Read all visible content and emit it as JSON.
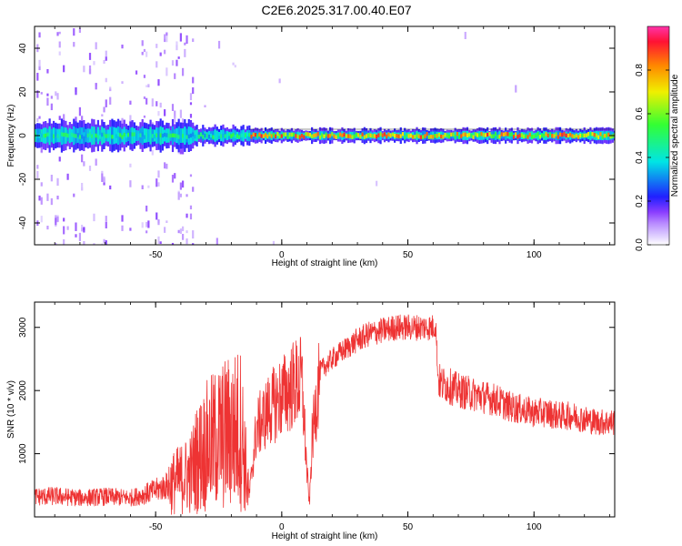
{
  "figure": {
    "title": "C2E6.2025.317.00.40.E07"
  },
  "colors": {
    "snr_line": "#ee3333",
    "rainbow_stops": [
      "#ffffff",
      "#d8c4ff",
      "#b788ff",
      "#8a3dff",
      "#2020ff",
      "#00e5e5",
      "#33ff33",
      "#f0f000",
      "#ff8800",
      "#ff1133",
      "#ff33aa"
    ]
  },
  "chart_data": [
    {
      "type": "heatmap",
      "xlabel": "Height of straight line (km)",
      "ylabel": "Frequency (Hz)",
      "xlim": [
        -98,
        132
      ],
      "ylim": [
        -50,
        50
      ],
      "xticks": [
        -50,
        0,
        50,
        100
      ],
      "xtick_labels": [
        "-50",
        "0",
        "50",
        "100"
      ],
      "yticks": [
        -40,
        -20,
        0,
        20,
        40
      ],
      "ytick_labels": [
        "-40",
        "-20",
        "0",
        "20",
        "40"
      ],
      "grid": false,
      "colorbar": {
        "label": "Normalized spectral amplitude",
        "range": [
          0,
          1
        ],
        "ticks": [
          0.0,
          0.2,
          0.4,
          0.6,
          0.8
        ],
        "tick_labels": [
          "0.0",
          "0.2",
          "0.4",
          "0.6",
          "0.8"
        ]
      },
      "description_of_bands": [
        {
          "x_from": -98,
          "x_to": -35,
          "freq_half_width_hz": 6,
          "peak_amplitude": 0.55,
          "background_scatter": "dense weak purple noise across all frequencies"
        },
        {
          "x_from": -35,
          "x_to": -13,
          "freq_half_width_hz": 4,
          "peak_amplitude": 0.55,
          "background_scatter": "sparse weak noise"
        },
        {
          "x_from": -13,
          "x_to": 132,
          "freq_half_width_hz": 3,
          "peak_amplitude": 0.92,
          "background_scatter": "very sparse"
        }
      ]
    },
    {
      "type": "line",
      "xlabel": "Height of straight line (km)",
      "ylabel": "SNR (10 * v/v)",
      "xlim": [
        -98,
        132
      ],
      "ylim": [
        0,
        3400
      ],
      "xticks": [
        -50,
        0,
        50,
        100
      ],
      "xtick_labels": [
        "-50",
        "0",
        "50",
        "100"
      ],
      "yticks": [
        1000,
        2000,
        3000
      ],
      "ytick_labels": [
        "1000",
        "2000",
        "3000"
      ],
      "grid": false,
      "series": [
        {
          "name": "",
          "x": [
            -98,
            -90,
            -80,
            -70,
            -60,
            -55,
            -50,
            -45,
            -40,
            -36,
            -34,
            -30,
            -25,
            -20,
            -16,
            -13,
            -10,
            -5,
            0,
            5,
            8,
            10,
            11,
            12,
            15,
            20,
            25,
            30,
            35,
            40,
            45,
            50,
            55,
            60,
            61,
            62,
            63,
            65,
            70,
            75,
            80,
            85,
            90,
            95,
            100,
            105,
            110,
            115,
            120,
            125,
            132
          ],
          "y": [
            320,
            330,
            300,
            320,
            300,
            350,
            420,
            500,
            600,
            700,
            900,
            1100,
            1250,
            1350,
            1400,
            300,
            1400,
            1700,
            1900,
            2100,
            2150,
            700,
            200,
            1200,
            2300,
            2500,
            2650,
            2800,
            2900,
            2950,
            3000,
            3000,
            3000,
            3000,
            3050,
            2200,
            2100,
            2100,
            2000,
            1950,
            1900,
            1850,
            1750,
            1700,
            1650,
            1650,
            1600,
            1600,
            1550,
            1500,
            1500
          ]
        }
      ]
    }
  ]
}
